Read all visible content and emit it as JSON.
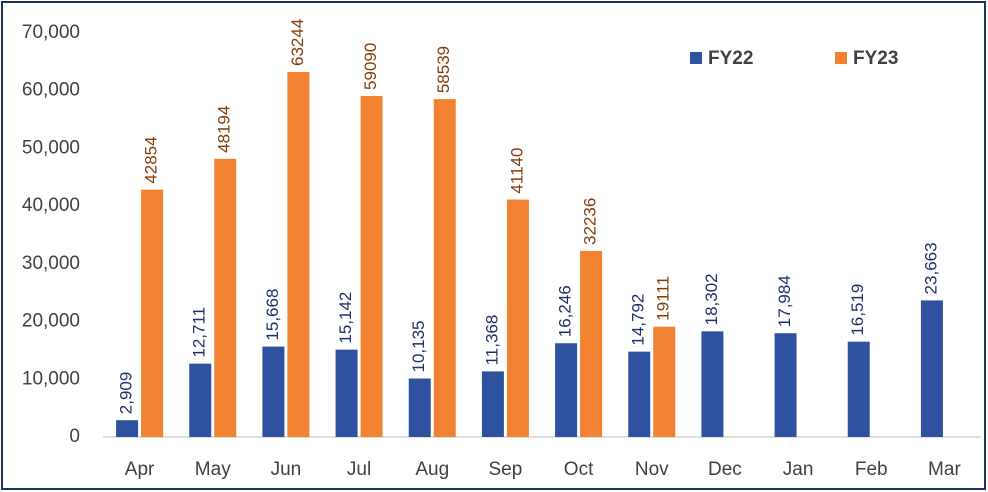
{
  "chart_data": {
    "type": "bar",
    "categories": [
      "Apr",
      "May",
      "Jun",
      "Jul",
      "Aug",
      "Sep",
      "Oct",
      "Nov",
      "Dec",
      "Jan",
      "Feb",
      "Mar"
    ],
    "series": [
      {
        "name": "FY22",
        "color": "#2f52a0",
        "label_color": "#1f2f6b",
        "values": [
          2909,
          12711,
          15668,
          15142,
          10135,
          11368,
          16246,
          14792,
          18302,
          17984,
          16519,
          23663
        ],
        "value_labels": [
          "2,909",
          "12,711",
          "15,668",
          "15,142",
          "10,135",
          "11,368",
          "16,246",
          "14,792",
          "18,302",
          "17,984",
          "16,519",
          "23,663"
        ]
      },
      {
        "name": "FY23",
        "color": "#f08232",
        "label_color": "#843c0c",
        "values": [
          42854,
          48194,
          63244,
          59090,
          58539,
          41140,
          32236,
          19111,
          null,
          null,
          null,
          null
        ]
      }
    ],
    "ylim": [
      0,
      70000
    ],
    "yticks": [
      0,
      {
        "value": 10000,
        "label": "10,000"
      },
      {
        "value": 20000,
        "label": "20,000"
      },
      {
        "value": 30000,
        "label": "30,000"
      },
      {
        "value": 40000,
        "label": "40,000"
      },
      {
        "value": 50000,
        "label": "50,000"
      },
      {
        "value": 60000,
        "label": "60,000"
      },
      {
        "value": 70000,
        "label": "70,000"
      }
    ],
    "legend": "top-right",
    "grid": false
  }
}
